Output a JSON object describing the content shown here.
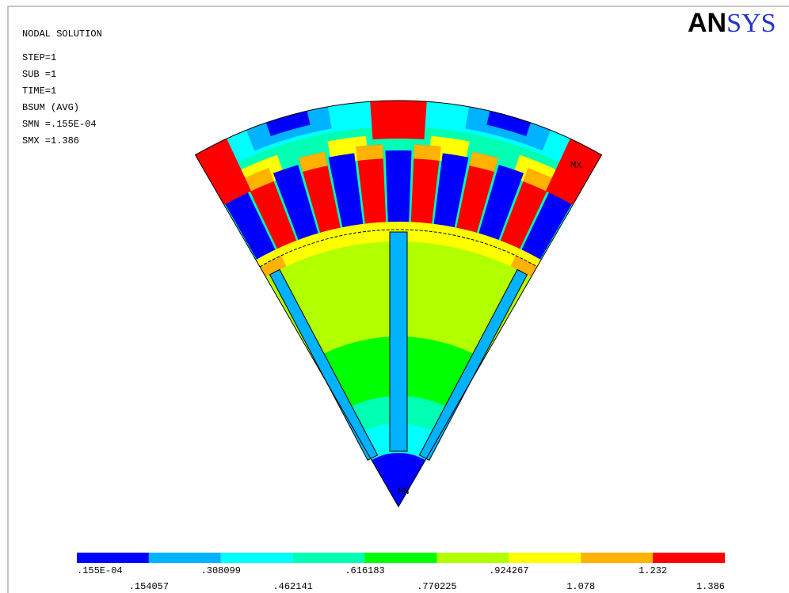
{
  "header": {
    "title": "NODAL SOLUTION",
    "lines": [
      "STEP=1",
      "SUB =1",
      "TIME=1",
      "BSUM      (AVG)",
      "SMN =.155E-04",
      "SMX =1.386"
    ]
  },
  "logo": {
    "part1": "AN",
    "part2": "SYS"
  },
  "markers": {
    "max": "MX",
    "min": "MN"
  },
  "legend": {
    "colors": [
      "#0000ff",
      "#00b2ff",
      "#00ffff",
      "#00ffb2",
      "#00ff00",
      "#b2ff00",
      "#ffff00",
      "#ffb200",
      "#ff0000"
    ],
    "labels": [
      ".155E-04",
      ".154057",
      ".308099",
      ".462141",
      ".616183",
      ".770225",
      ".924267",
      "1.078",
      "1.232",
      "1.386"
    ]
  }
}
